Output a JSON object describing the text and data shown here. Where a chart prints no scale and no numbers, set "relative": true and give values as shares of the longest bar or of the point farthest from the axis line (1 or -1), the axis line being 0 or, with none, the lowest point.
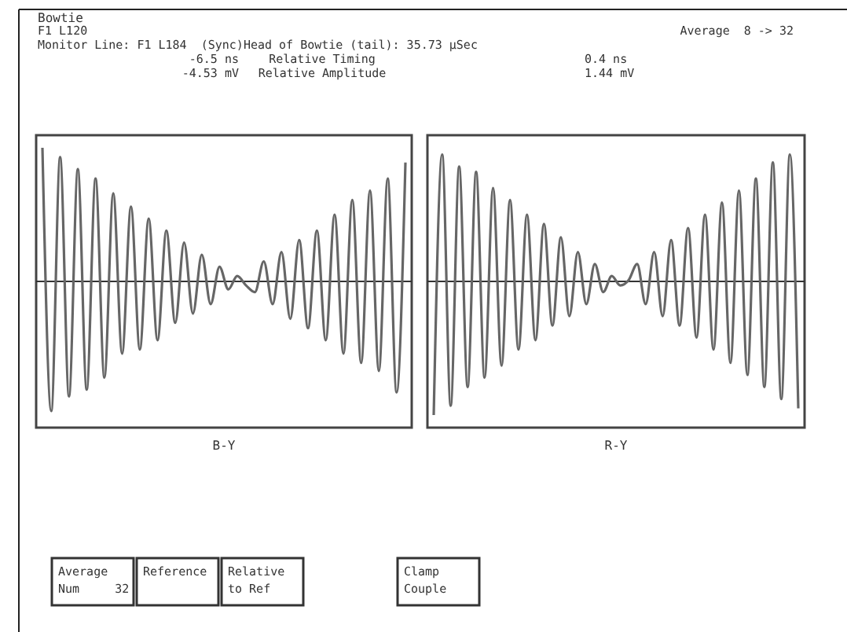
{
  "chart_data": [
    {
      "type": "line",
      "relative": true,
      "title": "Bowtie",
      "xlabel": "B-Y",
      "annotations": [
        "F1 L120",
        "Monitor Line: F1 L184  (Sync)Head of Bowtie (tail): 35.73 µSec",
        "Average  8 -> 32",
        "-6.5 ns",
        "-4.53 mV",
        "Relative Timing",
        "Relative Amplitude",
        "Average\nNum     32",
        "Reference",
        "Relative\nto Ref",
        "Clamp\nCouple"
      ],
      "categories": [
        null,
        null,
        null,
        null,
        null,
        null,
        null,
        null,
        null,
        null,
        null,
        null,
        null,
        null,
        null,
        null,
        null,
        null,
        null,
        null,
        null,
        null,
        null,
        null,
        null,
        null,
        null,
        null,
        null,
        null,
        null,
        null,
        null,
        null,
        null,
        null,
        null,
        null,
        null,
        null,
        null,
        null
      ],
      "series": [
        {
          "color": "#666666",
          "values": [
            1.0,
            -0.97,
            0.93,
            -0.86,
            0.84,
            -0.81,
            0.77,
            -0.72,
            0.66,
            -0.54,
            0.56,
            -0.51,
            0.47,
            -0.44,
            0.38,
            -0.31,
            0.29,
            -0.24,
            0.2,
            -0.17,
            0.11,
            -0.06,
            0.04,
            -0.03,
            -0.08,
            0.15,
            -0.17,
            0.22,
            -0.28,
            0.31,
            -0.35,
            0.38,
            -0.44,
            0.5,
            -0.54,
            0.61,
            -0.61,
            0.68,
            -0.67,
            0.77,
            -0.83,
            0.89
          ]
        }
      ]
    },
    {
      "type": "line",
      "relative": true,
      "xlabel": "R-Y",
      "annotations": [
        "0.4 ns",
        "1.44 mV"
      ],
      "categories": [
        null,
        null,
        null,
        null,
        null,
        null,
        null,
        null,
        null,
        null,
        null,
        null,
        null,
        null,
        null,
        null,
        null,
        null,
        null,
        null,
        null,
        null,
        null,
        null,
        null,
        null,
        null,
        null,
        null,
        null,
        null,
        null,
        null,
        null,
        null,
        null,
        null,
        null,
        null,
        null,
        null,
        null,
        null,
        null
      ],
      "series": [
        {
          "color": "#666666",
          "values": [
            -1.0,
            0.95,
            -0.93,
            0.86,
            -0.79,
            0.82,
            -0.72,
            0.7,
            -0.63,
            0.61,
            -0.51,
            0.5,
            -0.44,
            0.43,
            -0.33,
            0.33,
            -0.26,
            0.22,
            -0.17,
            0.13,
            -0.08,
            0.04,
            -0.03,
            0.01,
            0.13,
            -0.17,
            0.22,
            -0.26,
            0.31,
            -0.33,
            0.4,
            -0.42,
            0.5,
            -0.51,
            0.59,
            -0.61,
            0.68,
            -0.7,
            0.77,
            -0.79,
            0.89,
            -0.88,
            0.95,
            -0.95
          ]
        }
      ]
    }
  ]
}
